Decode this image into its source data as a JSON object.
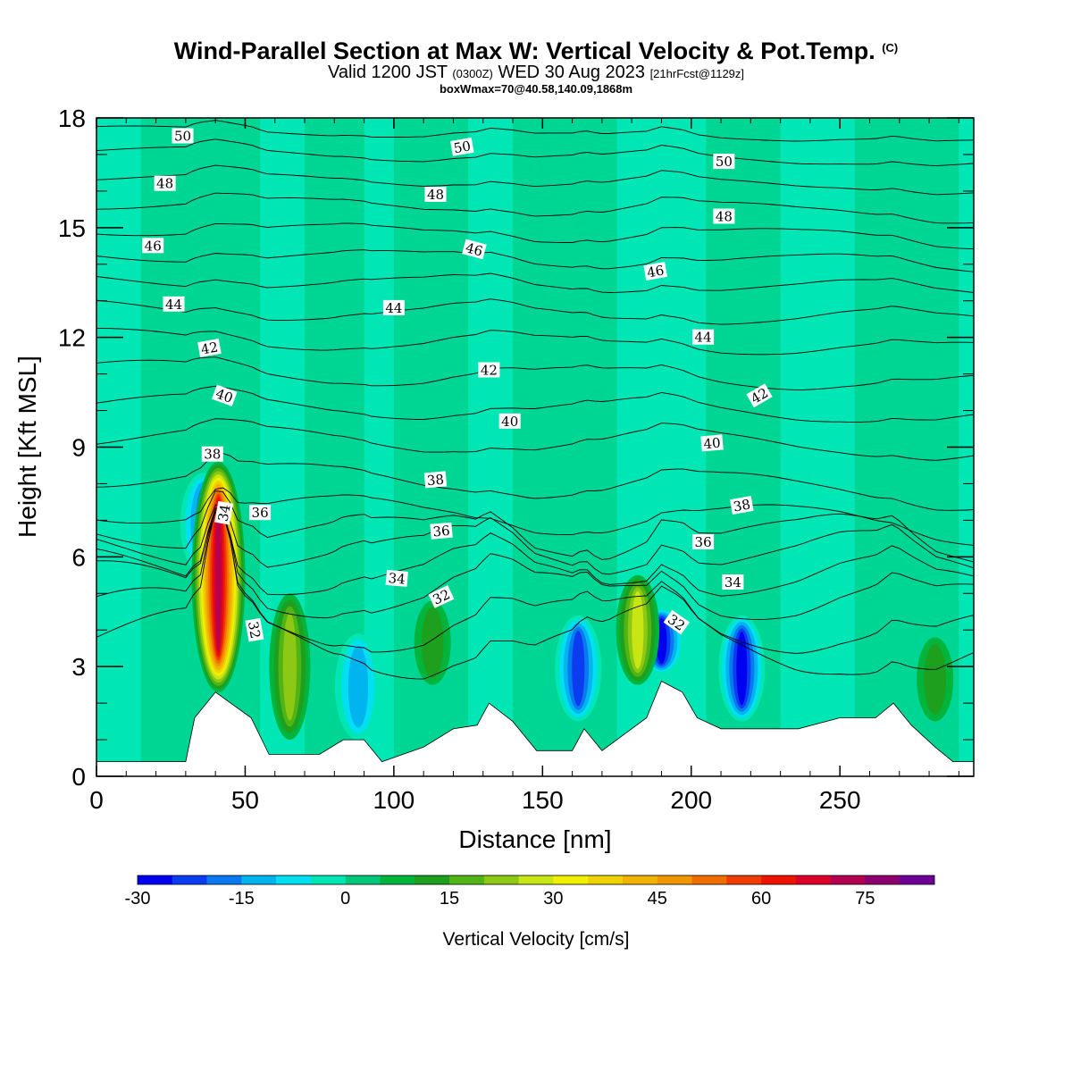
{
  "title": {
    "main": "Wind-Parallel Section at Max W: Vertical Velocity & Pot.Temp.",
    "copyright": "(C)",
    "valid_prefix": "Valid 1200 JST",
    "valid_zulu": "(0300Z)",
    "valid_date": "WED 30 Aug 2023",
    "forecast": "[21hrFcst@1129z]",
    "box": "boxWmax=70@40.58,140.09,1868m"
  },
  "chart_data": {
    "type": "heatmap",
    "xlabel": "Distance [nm]",
    "ylabel": "Height [Kft MSL]",
    "xlim": [
      0,
      295
    ],
    "ylim": [
      0,
      18
    ],
    "xticks": [
      0,
      50,
      100,
      150,
      200,
      250
    ],
    "yticks": [
      0,
      3,
      6,
      9,
      12,
      15,
      18
    ],
    "colorbar": {
      "label": "Vertical Velocity [cm/s]",
      "min": -30,
      "max": 85,
      "step": 5,
      "tick_values": [
        -30,
        -15,
        0,
        15,
        30,
        45,
        60,
        75
      ],
      "tick_labels": [
        "-30",
        "-15",
        "0",
        "15",
        "30",
        "45",
        "60",
        "75"
      ],
      "colors": [
        "#0000f0",
        "#0a3cf0",
        "#0a78f0",
        "#00b4f0",
        "#00e0f0",
        "#00e6b4",
        "#00c87a",
        "#00b43c",
        "#1ea01e",
        "#50b414",
        "#8cc814",
        "#c8e614",
        "#f0f000",
        "#f0d200",
        "#f0b400",
        "#f09600",
        "#f06e00",
        "#f03c00",
        "#f01400",
        "#dc0028",
        "#b40050",
        "#8c006e",
        "#6e0096"
      ]
    },
    "background_color": "#00e6b4",
    "updraft_cores": [
      {
        "x": 41,
        "z_bottom": 2.3,
        "z_top": 8.6,
        "max": 70
      },
      {
        "x": 65,
        "z_bottom": 1.0,
        "z_top": 5.0,
        "max": 20
      },
      {
        "x": 113,
        "z_bottom": 2.5,
        "z_top": 4.8,
        "max": 10
      },
      {
        "x": 182,
        "z_bottom": 2.5,
        "z_top": 5.5,
        "max": 25
      },
      {
        "x": 282,
        "z_bottom": 1.5,
        "z_top": 3.8,
        "max": 10
      }
    ],
    "downdraft_cores": [
      {
        "x": 36,
        "z_bottom": 5.5,
        "z_top": 8.3,
        "min": -20
      },
      {
        "x": 88,
        "z_bottom": 1.0,
        "z_top": 3.9,
        "min": -15
      },
      {
        "x": 162,
        "z_bottom": 1.5,
        "z_top": 4.4,
        "min": -25
      },
      {
        "x": 190,
        "z_bottom": 2.8,
        "z_top": 4.6,
        "min": -30
      },
      {
        "x": 217,
        "z_bottom": 1.5,
        "z_top": 4.4,
        "min": -30
      }
    ],
    "terrain": [
      [
        0,
        0.4
      ],
      [
        30,
        0.4
      ],
      [
        33,
        1.6
      ],
      [
        40,
        2.3
      ],
      [
        52,
        1.6
      ],
      [
        58,
        0.6
      ],
      [
        75,
        0.6
      ],
      [
        83,
        1.0
      ],
      [
        90,
        1.0
      ],
      [
        96,
        0.4
      ],
      [
        110,
        0.8
      ],
      [
        120,
        1.3
      ],
      [
        128,
        1.4
      ],
      [
        132,
        2.0
      ],
      [
        140,
        1.5
      ],
      [
        148,
        0.7
      ],
      [
        160,
        0.7
      ],
      [
        164,
        1.3
      ],
      [
        170,
        0.7
      ],
      [
        185,
        1.6
      ],
      [
        190,
        2.6
      ],
      [
        197,
        2.3
      ],
      [
        202,
        1.6
      ],
      [
        210,
        1.3
      ],
      [
        226,
        1.3
      ],
      [
        236,
        1.3
      ],
      [
        250,
        1.6
      ],
      [
        262,
        1.6
      ],
      [
        268,
        2.0
      ],
      [
        274,
        1.4
      ],
      [
        282,
        0.8
      ],
      [
        288,
        0.4
      ],
      [
        295,
        0.4
      ]
    ],
    "theta_contours": [
      {
        "value": 32,
        "base": 3.8,
        "amp": 0.9
      },
      {
        "value": 33,
        "base": 4.4,
        "amp": 0.8
      },
      {
        "value": 34,
        "base": 5.2,
        "amp": 0.7
      },
      {
        "value": 35,
        "base": 5.7,
        "amp": 0.6
      },
      {
        "value": 36,
        "base": 6.3,
        "amp": 0.55
      },
      {
        "value": 37,
        "base": 6.8,
        "amp": 0.5
      },
      {
        "value": 38,
        "base": 7.4,
        "amp": 0.45
      },
      {
        "value": 39,
        "base": 8.3,
        "amp": 0.4
      },
      {
        "value": 40,
        "base": 9.3,
        "amp": 0.35
      },
      {
        "value": 41,
        "base": 10.2,
        "amp": 0.3
      },
      {
        "value": 42,
        "base": 11.1,
        "amp": 0.3
      },
      {
        "value": 43,
        "base": 12.0,
        "amp": 0.25
      },
      {
        "value": 44,
        "base": 12.8,
        "amp": 0.25
      },
      {
        "value": 45,
        "base": 13.6,
        "amp": 0.2
      },
      {
        "value": 46,
        "base": 14.3,
        "amp": 0.2
      },
      {
        "value": 47,
        "base": 15.0,
        "amp": 0.2
      },
      {
        "value": 48,
        "base": 15.7,
        "amp": 0.2
      },
      {
        "value": 49,
        "base": 16.4,
        "amp": 0.15
      },
      {
        "value": 50,
        "base": 17.1,
        "amp": 0.15
      },
      {
        "value": 51,
        "base": 17.7,
        "amp": 0.1
      }
    ],
    "contour_labels": [
      {
        "text": "50",
        "x": 29,
        "z": 17.5,
        "rot": 0
      },
      {
        "text": "50",
        "x": 123,
        "z": 17.2,
        "rot": 10
      },
      {
        "text": "50",
        "x": 211,
        "z": 16.8,
        "rot": 0
      },
      {
        "text": "48",
        "x": 23,
        "z": 16.2,
        "rot": 0
      },
      {
        "text": "48",
        "x": 114,
        "z": 15.9,
        "rot": 0
      },
      {
        "text": "48",
        "x": 211,
        "z": 15.3,
        "rot": 0
      },
      {
        "text": "46",
        "x": 19,
        "z": 14.5,
        "rot": 0
      },
      {
        "text": "46",
        "x": 127,
        "z": 14.4,
        "rot": -15
      },
      {
        "text": "46",
        "x": 188,
        "z": 13.8,
        "rot": 10
      },
      {
        "text": "44",
        "x": 26,
        "z": 12.9,
        "rot": 0
      },
      {
        "text": "44",
        "x": 100,
        "z": 12.8,
        "rot": 0
      },
      {
        "text": "44",
        "x": 204,
        "z": 12.0,
        "rot": 0
      },
      {
        "text": "42",
        "x": 38,
        "z": 11.7,
        "rot": 10
      },
      {
        "text": "42",
        "x": 132,
        "z": 11.1,
        "rot": 0
      },
      {
        "text": "42",
        "x": 223,
        "z": 10.4,
        "rot": 30
      },
      {
        "text": "40",
        "x": 43,
        "z": 10.4,
        "rot": -20
      },
      {
        "text": "40",
        "x": 139,
        "z": 9.7,
        "rot": 0
      },
      {
        "text": "40",
        "x": 207,
        "z": 9.1,
        "rot": 5
      },
      {
        "text": "38",
        "x": 39,
        "z": 8.8,
        "rot": 0
      },
      {
        "text": "38",
        "x": 114,
        "z": 8.1,
        "rot": 5
      },
      {
        "text": "38",
        "x": 217,
        "z": 7.4,
        "rot": 10
      },
      {
        "text": "36",
        "x": 55,
        "z": 7.2,
        "rot": 0
      },
      {
        "text": "36",
        "x": 116,
        "z": 6.7,
        "rot": 5
      },
      {
        "text": "36",
        "x": 204,
        "z": 6.4,
        "rot": 0
      },
      {
        "text": "34",
        "x": 43,
        "z": 7.2,
        "rot": 80
      },
      {
        "text": "34",
        "x": 101,
        "z": 5.4,
        "rot": -5
      },
      {
        "text": "34",
        "x": 214,
        "z": 5.3,
        "rot": 0
      },
      {
        "text": "32",
        "x": 116,
        "z": 4.9,
        "rot": 25
      },
      {
        "text": "32",
        "x": 53,
        "z": 4.0,
        "rot": -80
      },
      {
        "text": "32",
        "x": 195,
        "z": 4.2,
        "rot": -35
      }
    ]
  }
}
